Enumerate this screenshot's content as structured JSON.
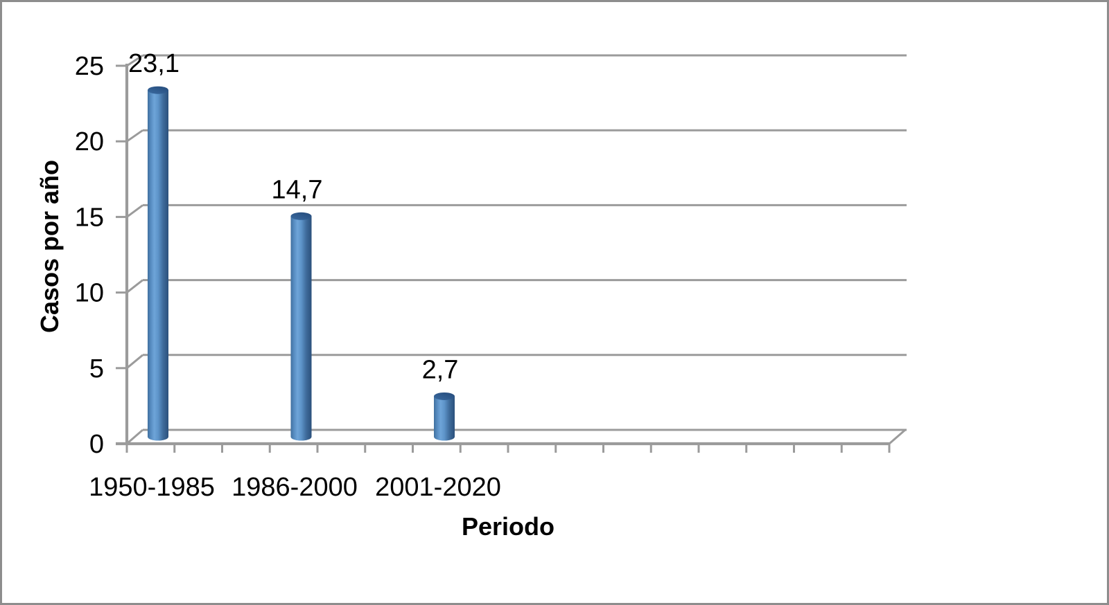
{
  "chart_data": {
    "type": "bar",
    "subtype": "3d-cylinder",
    "title": "",
    "categories": [
      "1950-1985",
      "1986-2000",
      "2001-2020"
    ],
    "values": [
      23.1,
      14.7,
      2.7
    ],
    "value_labels": [
      "23,1",
      "14,7",
      "2,7"
    ],
    "xlabel": "Periodo",
    "ylabel": "Casos por año",
    "ylim": [
      0,
      25
    ],
    "ytick_interval": 5,
    "yticks": [
      "0",
      "5",
      "10",
      "15",
      "20",
      "25"
    ],
    "grid": true,
    "legend": false,
    "colors": {
      "bar": "#4f81bd",
      "bar_dark": "#2b507b",
      "bar_highlight": "#6ea4d8",
      "bar_top": "#30598c",
      "line": "#9b9b9b",
      "text": "#000000",
      "frame": "#8d8d8d",
      "background": "#ffffff"
    }
  }
}
